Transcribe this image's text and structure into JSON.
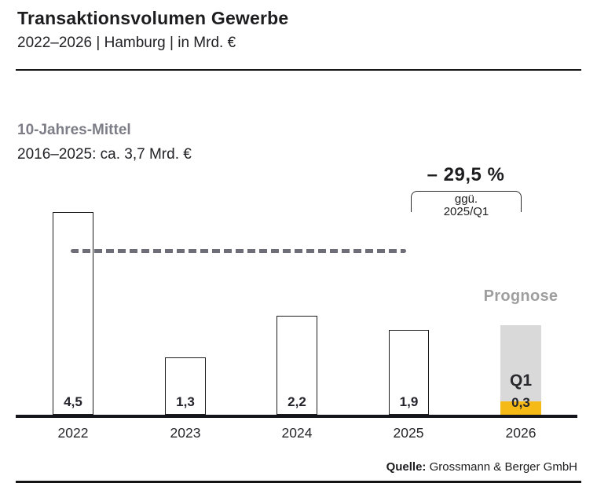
{
  "header": {
    "title": "Transaktionsvolumen Gewerbe",
    "subtitle": "2022–2026 | Hamburg | in Mrd. €"
  },
  "average_note": {
    "label": "10-Jahres-Mittel",
    "value": "2016–2025: ca. 3,7 Mrd. €"
  },
  "annotation": {
    "delta": "– 29,5 %",
    "reference_line1": "ggü.",
    "reference_line2": "2025/Q1"
  },
  "source": {
    "label": "Quelle:",
    "text": " Grossmann & Berger GmbH"
  },
  "colors": {
    "ink": "#1d1d1f",
    "muted_label_gray": "#7d7d87",
    "dash_line_gray": "#6e6e79",
    "prognose_gray": "#9e9e9e",
    "forecast_bar_gray": "#d9d9d9",
    "q1_yellow": "#f6ba17",
    "axis_dark": "#14141c"
  },
  "chart_data": {
    "type": "bar",
    "title": "Transaktionsvolumen Gewerbe",
    "subtitle": "2022–2026 | Hamburg | in Mrd. €",
    "unit": "Mrd. €",
    "categories": [
      "2022",
      "2023",
      "2024",
      "2025",
      "2026"
    ],
    "values": [
      4.5,
      1.3,
      2.2,
      1.9,
      0.3
    ],
    "value_labels": [
      "4,5",
      "1,3",
      "2,2",
      "1,9",
      "0,3"
    ],
    "ylim": [
      0,
      5
    ],
    "grid": false,
    "bar_style": "outlined-white",
    "reference_line": {
      "label": "10-Jahres-Mittel",
      "period": "2016–2025",
      "value": 3.7,
      "style": "dashed-gray"
    },
    "forecast": {
      "category": "2026",
      "note": "Prognose",
      "quarter_label": "Q1",
      "q1_value": 0.3,
      "q1_value_label": "0,3",
      "forecast_color": "#d9d9d9",
      "q1_color": "#f6ba17"
    },
    "annotation": {
      "text": "– 29,5 % ggü. 2025/Q1",
      "spans_categories": [
        "2025",
        "2026"
      ]
    }
  }
}
